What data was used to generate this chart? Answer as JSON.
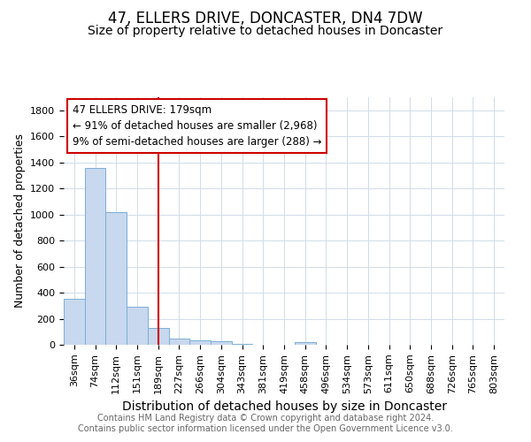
{
  "title": "47, ELLERS DRIVE, DONCASTER, DN4 7DW",
  "subtitle": "Size of property relative to detached houses in Doncaster",
  "xlabel": "Distribution of detached houses by size in Doncaster",
  "ylabel": "Number of detached properties",
  "categories": [
    "36sqm",
    "74sqm",
    "112sqm",
    "151sqm",
    "189sqm",
    "227sqm",
    "266sqm",
    "304sqm",
    "343sqm",
    "381sqm",
    "419sqm",
    "458sqm",
    "496sqm",
    "534sqm",
    "573sqm",
    "611sqm",
    "650sqm",
    "688sqm",
    "726sqm",
    "765sqm",
    "803sqm"
  ],
  "values": [
    355,
    1360,
    1020,
    290,
    130,
    45,
    35,
    30,
    10,
    0,
    0,
    20,
    0,
    0,
    0,
    0,
    0,
    0,
    0,
    0,
    0
  ],
  "bar_color": "#c8d8ee",
  "bar_edge_color": "#7bafd4",
  "background_color": "#ffffff",
  "grid_color": "#d0dce8",
  "vline_x_index": 4,
  "vline_color": "#cc0000",
  "annotation_text": "47 ELLERS DRIVE: 179sqm\n← 91% of detached houses are smaller (2,968)\n9% of semi-detached houses are larger (288) →",
  "annotation_box_color": "#ffffff",
  "annotation_box_edge_color": "#cc0000",
  "ylim": [
    0,
    1900
  ],
  "yticks": [
    0,
    200,
    400,
    600,
    800,
    1000,
    1200,
    1400,
    1600,
    1800
  ],
  "footer": "Contains HM Land Registry data © Crown copyright and database right 2024.\nContains public sector information licensed under the Open Government Licence v3.0.",
  "title_fontsize": 12,
  "subtitle_fontsize": 10,
  "xlabel_fontsize": 10,
  "ylabel_fontsize": 9,
  "tick_fontsize": 8,
  "annotation_fontsize": 8.5,
  "footer_fontsize": 7
}
